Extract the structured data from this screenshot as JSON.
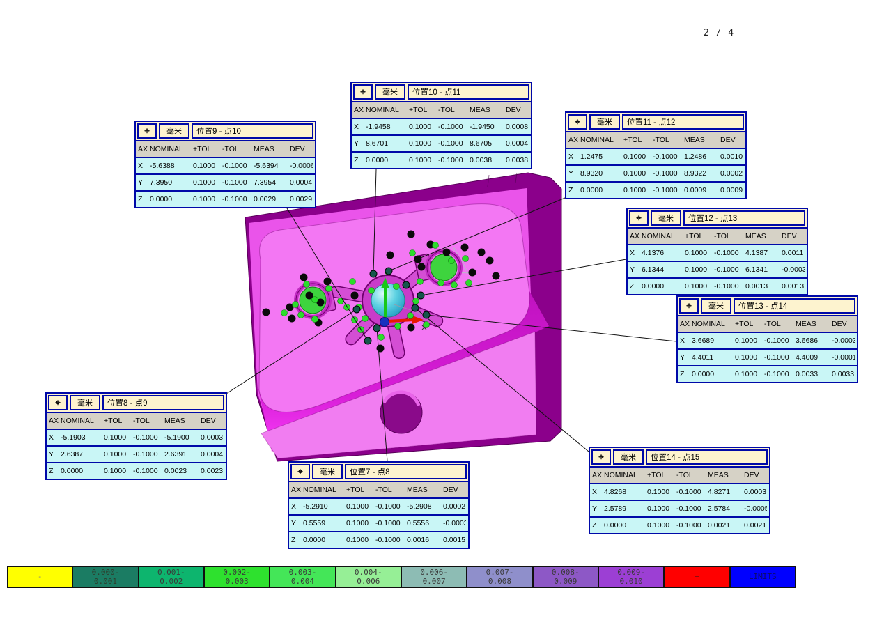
{
  "page": {
    "indicator": "2 / 4"
  },
  "callout_common": {
    "icon_glyph": "⌖",
    "unit_label": "毫米",
    "columns": [
      "AX",
      "NOMINAL",
      "+TOL",
      "-TOL",
      "MEAS",
      "DEV"
    ]
  },
  "callouts": [
    {
      "key": "pos7",
      "title": "位置7 - 点8",
      "rows": [
        [
          "X",
          "-5.2910",
          "0.1000",
          "-0.1000",
          "-5.2908",
          "0.0002"
        ],
        [
          "Y",
          "0.5559",
          "0.1000",
          "-0.1000",
          "0.5556",
          "-0.0003"
        ],
        [
          "Z",
          "0.0000",
          "0.1000",
          "-0.1000",
          "0.0016",
          "0.0015"
        ]
      ]
    },
    {
      "key": "pos8",
      "title": "位置8 - 点9",
      "rows": [
        [
          "X",
          "-5.1903",
          "0.1000",
          "-0.1000",
          "-5.1900",
          "0.0003"
        ],
        [
          "Y",
          "2.6387",
          "0.1000",
          "-0.1000",
          "2.6391",
          "0.0004"
        ],
        [
          "Z",
          "0.0000",
          "0.1000",
          "-0.1000",
          "0.0023",
          "0.0023"
        ]
      ]
    },
    {
      "key": "pos9",
      "title": "位置9 - 点10",
      "rows": [
        [
          "X",
          "-5.6388",
          "0.1000",
          "-0.1000",
          "-5.6394",
          "-0.0006"
        ],
        [
          "Y",
          "7.3950",
          "0.1000",
          "-0.1000",
          "7.3954",
          "0.0004"
        ],
        [
          "Z",
          "0.0000",
          "0.1000",
          "-0.1000",
          "0.0029",
          "0.0029"
        ]
      ]
    },
    {
      "key": "pos10",
      "title": "位置10 - 点11",
      "rows": [
        [
          "X",
          "-1.9458",
          "0.1000",
          "-0.1000",
          "-1.9450",
          "0.0008"
        ],
        [
          "Y",
          "8.6701",
          "0.1000",
          "-0.1000",
          "8.6705",
          "0.0004"
        ],
        [
          "Z",
          "0.0000",
          "0.1000",
          "-0.1000",
          "0.0038",
          "0.0038"
        ]
      ]
    },
    {
      "key": "pos11",
      "title": "位置11 - 点12",
      "rows": [
        [
          "X",
          "1.2475",
          "0.1000",
          "-0.1000",
          "1.2486",
          "0.0010"
        ],
        [
          "Y",
          "8.9320",
          "0.1000",
          "-0.1000",
          "8.9322",
          "0.0002"
        ],
        [
          "Z",
          "0.0000",
          "0.1000",
          "-0.1000",
          "0.0009",
          "0.0009"
        ]
      ]
    },
    {
      "key": "pos12",
      "title": "位置12 - 点13",
      "rows": [
        [
          "X",
          "4.1376",
          "0.1000",
          "-0.1000",
          "4.1387",
          "0.0011"
        ],
        [
          "Y",
          "6.1344",
          "0.1000",
          "-0.1000",
          "6.1341",
          "-0.0003"
        ],
        [
          "Z",
          "0.0000",
          "0.1000",
          "-0.1000",
          "0.0013",
          "0.0013"
        ]
      ]
    },
    {
      "key": "pos13",
      "title": "位置13 - 点14",
      "rows": [
        [
          "X",
          "3.6689",
          "0.1000",
          "-0.1000",
          "3.6686",
          "-0.0003"
        ],
        [
          "Y",
          "4.4011",
          "0.1000",
          "-0.1000",
          "4.4009",
          "-0.0001"
        ],
        [
          "Z",
          "0.0000",
          "0.1000",
          "-0.1000",
          "0.0033",
          "0.0033"
        ]
      ]
    },
    {
      "key": "pos14",
      "title": "位置14 - 点15",
      "rows": [
        [
          "X",
          "4.8268",
          "0.1000",
          "-0.1000",
          "4.8271",
          "0.0003"
        ],
        [
          "Y",
          "2.5789",
          "0.1000",
          "-0.1000",
          "2.5784",
          "-0.0005"
        ],
        [
          "Z",
          "0.0000",
          "0.1000",
          "-0.1000",
          "0.0021",
          "0.0021"
        ]
      ]
    }
  ],
  "legend": {
    "segments": [
      {
        "label": "-",
        "color": "#ffff00",
        "text_color": "#808080"
      },
      {
        "label": "0.000-\n0.001",
        "color": "#1b7c63",
        "text_color": "#2e3e2e"
      },
      {
        "label": "0.001-\n0.002",
        "color": "#0db56e",
        "text_color": "#3a3a3a"
      },
      {
        "label": "0.002-\n0.003",
        "color": "#2ee12e",
        "text_color": "#3a3a3a"
      },
      {
        "label": "0.003-\n0.004",
        "color": "#44e658",
        "text_color": "#3a3a3a"
      },
      {
        "label": "0.004-\n0.006",
        "color": "#96ef96",
        "text_color": "#3a3a3a"
      },
      {
        "label": "0.006-\n0.007",
        "color": "#8dbcb4",
        "text_color": "#3a3a3a"
      },
      {
        "label": "0.007-\n0.008",
        "color": "#8f8fcb",
        "text_color": "#3a3a3a"
      },
      {
        "label": "0.008-\n0.009",
        "color": "#8d58c6",
        "text_color": "#3a3a3a"
      },
      {
        "label": "0.009-\n0.010",
        "color": "#9c3fd4",
        "text_color": "#3a3a3a"
      },
      {
        "label": "+",
        "color": "#ff0000",
        "text_color": "#7a1010"
      },
      {
        "label": "LIMITS",
        "color": "#0000ff",
        "text_color": "#0b0b6b"
      }
    ]
  },
  "model_colors": {
    "side_dark": "#8b008b",
    "front_face": "#ea54ea",
    "raised_pad": "#f377f3",
    "lower_face": "#f17df1",
    "recess_wall_top": "#c012c0",
    "recess_wall_glow": "#fb3ffb",
    "feature_green": "#3ed43e",
    "center_ring": "#c93cc9",
    "arm_fill": "#d44ed4",
    "hole_dark": "#8a0a8a",
    "axis_x_red": "#e81800",
    "axis_y_green": "#18c818",
    "axis_z_blue": "#1830c0"
  }
}
